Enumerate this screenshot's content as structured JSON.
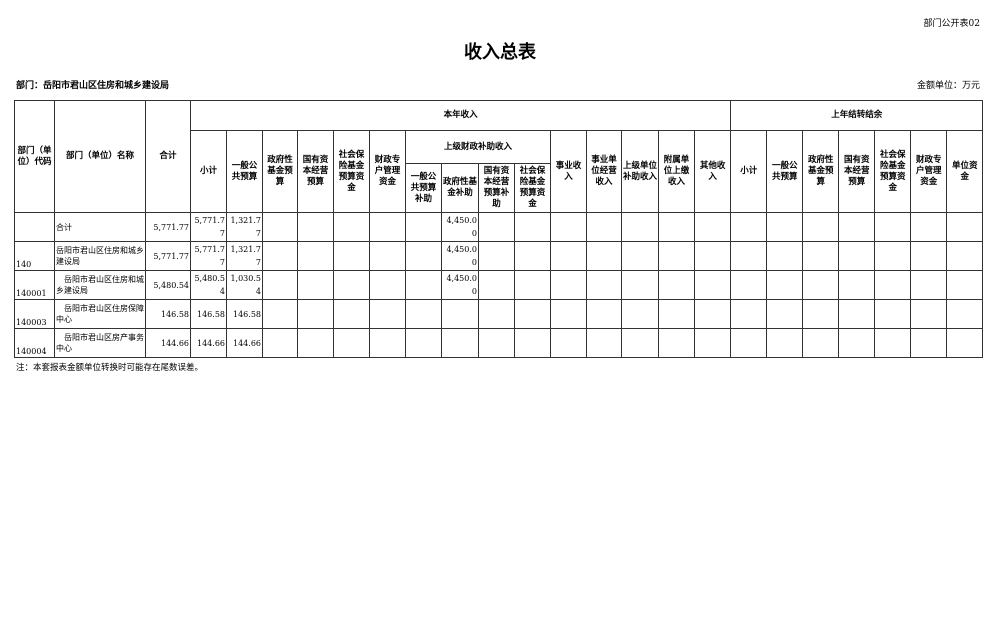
{
  "form_no": "部门公开表02",
  "title": "收入总表",
  "department": "部门：岳阳市君山区住房和城乡建设局",
  "unit": "金额单位：万元",
  "headers": {
    "code": "部门（单位）代码",
    "name": "部门（单位）名称",
    "total": "合计",
    "current_year": "本年收入",
    "prior_year": "上年结转结余",
    "superior_subsidy": "上级财政补助收入",
    "cy_cols": [
      "小计",
      "一般公共预算",
      "政府性基金预算",
      "国有资本经营预算",
      "社会保险基金预算资金",
      "财政专户管理资金"
    ],
    "sub_cols": [
      "一般公共预算补助",
      "政府性基金补助",
      "国有资本经营预算补助",
      "社会保险基金预算资金"
    ],
    "cy_tail": [
      "事业收入",
      "事业单位经营收入",
      "上级单位补助收入",
      "附属单位上缴收入",
      "其他收入"
    ],
    "py_cols": [
      "小计",
      "一般公共预算",
      "政府性基金预算",
      "国有资本经营预算",
      "社会保险基金预算资金",
      "财政专户管理资金",
      "单位资金"
    ]
  },
  "rows": [
    {
      "code": "",
      "name": "合计",
      "total": "5,771.77",
      "subtotal": "5,771.77",
      "general": "1,321.77",
      "gov_fund_sub": "4,450.00"
    },
    {
      "code": "140",
      "name": "岳阳市君山区住房和城乡建设局",
      "total": "5,771.77",
      "subtotal": "5,771.77",
      "general": "1,321.77",
      "gov_fund_sub": "4,450.00"
    },
    {
      "code": "140001",
      "name": "　岳阳市君山区住房和城乡建设局",
      "total": "5,480.54",
      "subtotal": "5,480.54",
      "general": "1,030.54",
      "gov_fund_sub": "4,450.00"
    },
    {
      "code": "140003",
      "name": "　岳阳市君山区住房保障中心",
      "total": "146.58",
      "subtotal": "146.58",
      "general": "146.58",
      "gov_fund_sub": ""
    },
    {
      "code": "140004",
      "name": "　岳阳市君山区房产事务中心",
      "total": "144.66",
      "subtotal": "144.66",
      "general": "144.66",
      "gov_fund_sub": ""
    }
  ],
  "note": "注：本套报表金额单位转换时可能存在尾数误差。"
}
